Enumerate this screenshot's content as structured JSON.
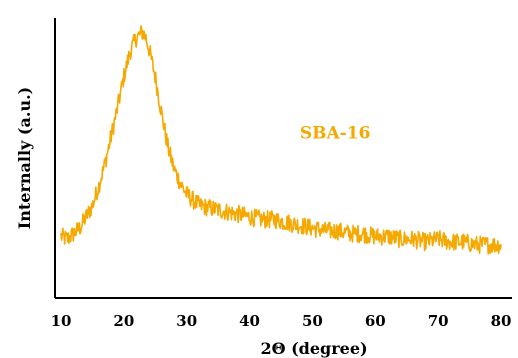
{
  "chart_data": {
    "type": "line",
    "title": "",
    "xlabel": "2Θ (degree)",
    "ylabel": "Internally (a.u.)",
    "xlim": [
      10,
      80
    ],
    "ylim": [
      0,
      100
    ],
    "x_ticks": [
      10,
      20,
      30,
      40,
      50,
      60,
      70,
      80
    ],
    "y_ticks_shown": false,
    "grid": false,
    "legend": "none",
    "annotations": [
      {
        "text": "SBA-16",
        "x": 48,
        "y": 57,
        "color": "#f5a800"
      }
    ],
    "series": [
      {
        "color": "#f5a800",
        "noise": 3.2,
        "x": [
          10,
          11,
          12,
          13,
          14,
          15,
          16,
          17,
          18,
          19,
          20,
          21,
          22,
          22.5,
          23,
          23.5,
          24,
          25,
          26,
          27,
          28,
          29,
          30,
          32,
          34,
          36,
          38,
          40,
          42,
          44,
          46,
          48,
          50,
          52,
          54,
          56,
          58,
          60,
          62,
          64,
          66,
          68,
          70,
          72,
          74,
          76,
          78,
          80
        ],
        "y": [
          22,
          21,
          23,
          25,
          29,
          33,
          40,
          48,
          58,
          68,
          79,
          88,
          93,
          94,
          95,
          93,
          89,
          79,
          66,
          54,
          46,
          41,
          37,
          33,
          32,
          31,
          30,
          29,
          28,
          28,
          27,
          26,
          25,
          24,
          24,
          23,
          23,
          22,
          22,
          21,
          21,
          20,
          21,
          20,
          20,
          19,
          19,
          19
        ]
      }
    ]
  }
}
